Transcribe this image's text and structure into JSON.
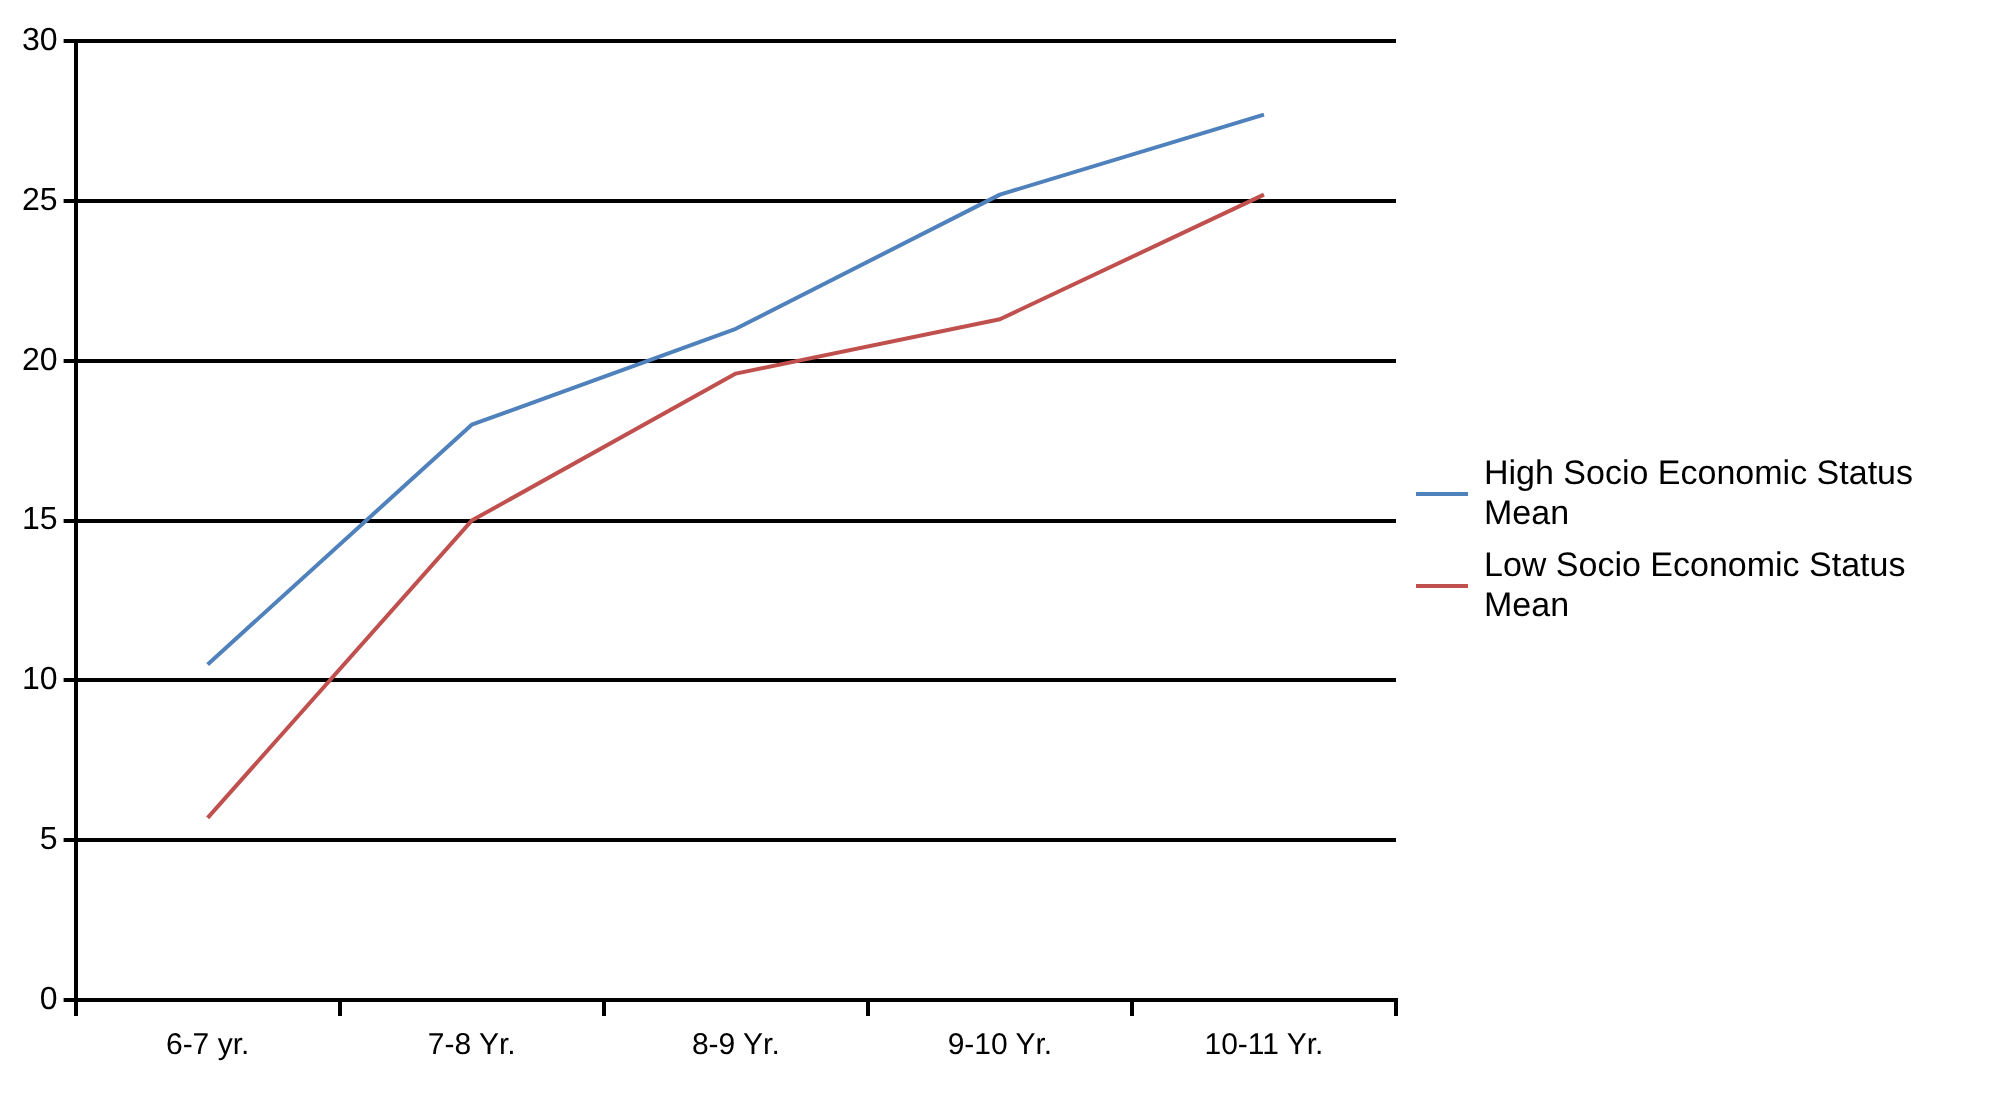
{
  "chart_data": {
    "type": "line",
    "categories": [
      "6-7 yr.",
      "7-8 Yr.",
      "8-9 Yr.",
      "9-10 Yr.",
      "10-11 Yr."
    ],
    "series": [
      {
        "name": "High Socio Economic Status Mean",
        "color": "#4f81bd",
        "values": [
          10.5,
          18.0,
          21.0,
          25.2,
          27.7
        ]
      },
      {
        "name": "Low Socio Economic Status Mean",
        "color": "#c0504d",
        "values": [
          5.7,
          15.0,
          19.6,
          21.3,
          25.2
        ]
      }
    ],
    "ylim": [
      0,
      30
    ],
    "yticks": [
      0,
      5,
      10,
      15,
      20,
      25,
      30
    ],
    "grid": "y",
    "legend": "right",
    "marker": "none",
    "line_style": "solid"
  }
}
